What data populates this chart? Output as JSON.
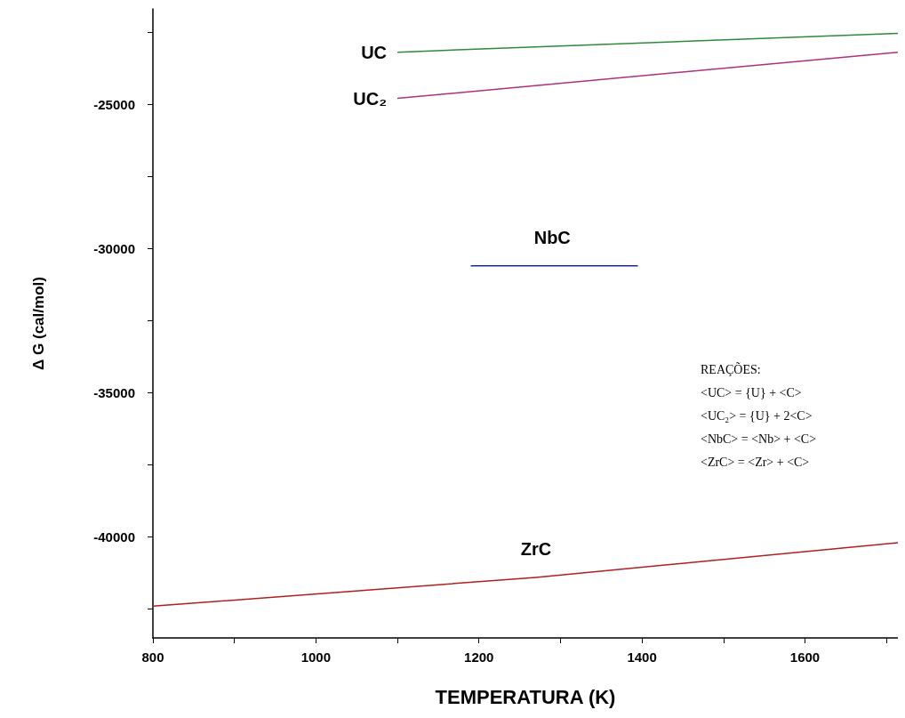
{
  "chart_data": {
    "type": "line",
    "xlabel": "TEMPERATURA (K)",
    "ylabel": "Δ G (cal/mol)",
    "series": [
      {
        "name": "UC",
        "color": "#2e8b3a",
        "x": [
          1100,
          1714
        ],
        "values": [
          -23200,
          -22550
        ]
      },
      {
        "name": "UC₂",
        "color": "#b0307a",
        "x": [
          1100,
          1714
        ],
        "values": [
          -24800,
          -23200
        ]
      },
      {
        "name": "NbC",
        "color": "#1a2a8a",
        "x": [
          1190,
          1290,
          1395
        ],
        "values": [
          -30600,
          -30600,
          -30600
        ]
      },
      {
        "name": "ZrC",
        "color": "#b02020",
        "x": [
          800,
          1270,
          1714
        ],
        "values": [
          -42400,
          -41400,
          -40200
        ]
      }
    ],
    "xlim": [
      800,
      1714
    ],
    "xticks": [
      800,
      {
        "value": 900,
        "label": null
      },
      1000,
      {
        "value": 1100,
        "label": null
      },
      1200,
      {
        "value": 1300,
        "label": null
      },
      1400,
      {
        "value": 1500,
        "label": null
      },
      1600,
      {
        "value": 1700,
        "label": null
      }
    ],
    "ylim": [
      -43500,
      -21700
    ],
    "yticks": [
      {
        "value": -42500,
        "label": null
      },
      -40000,
      {
        "value": -37500,
        "label": null
      },
      -35000,
      {
        "value": -32500,
        "label": null
      },
      -30000,
      {
        "value": -27500,
        "label": null
      },
      -25000,
      {
        "value": -22500,
        "label": null
      }
    ],
    "grid": false,
    "legend": false,
    "marker": "none",
    "line_style": "solid",
    "annotations": [
      "REAÇÕES:",
      "<UC> = {U} + <C>",
      "<UC₂> = {U} + 2<C>",
      "<NbC> = <Nb> + <C>",
      "<ZrC> = <Zr> + <C>"
    ]
  }
}
